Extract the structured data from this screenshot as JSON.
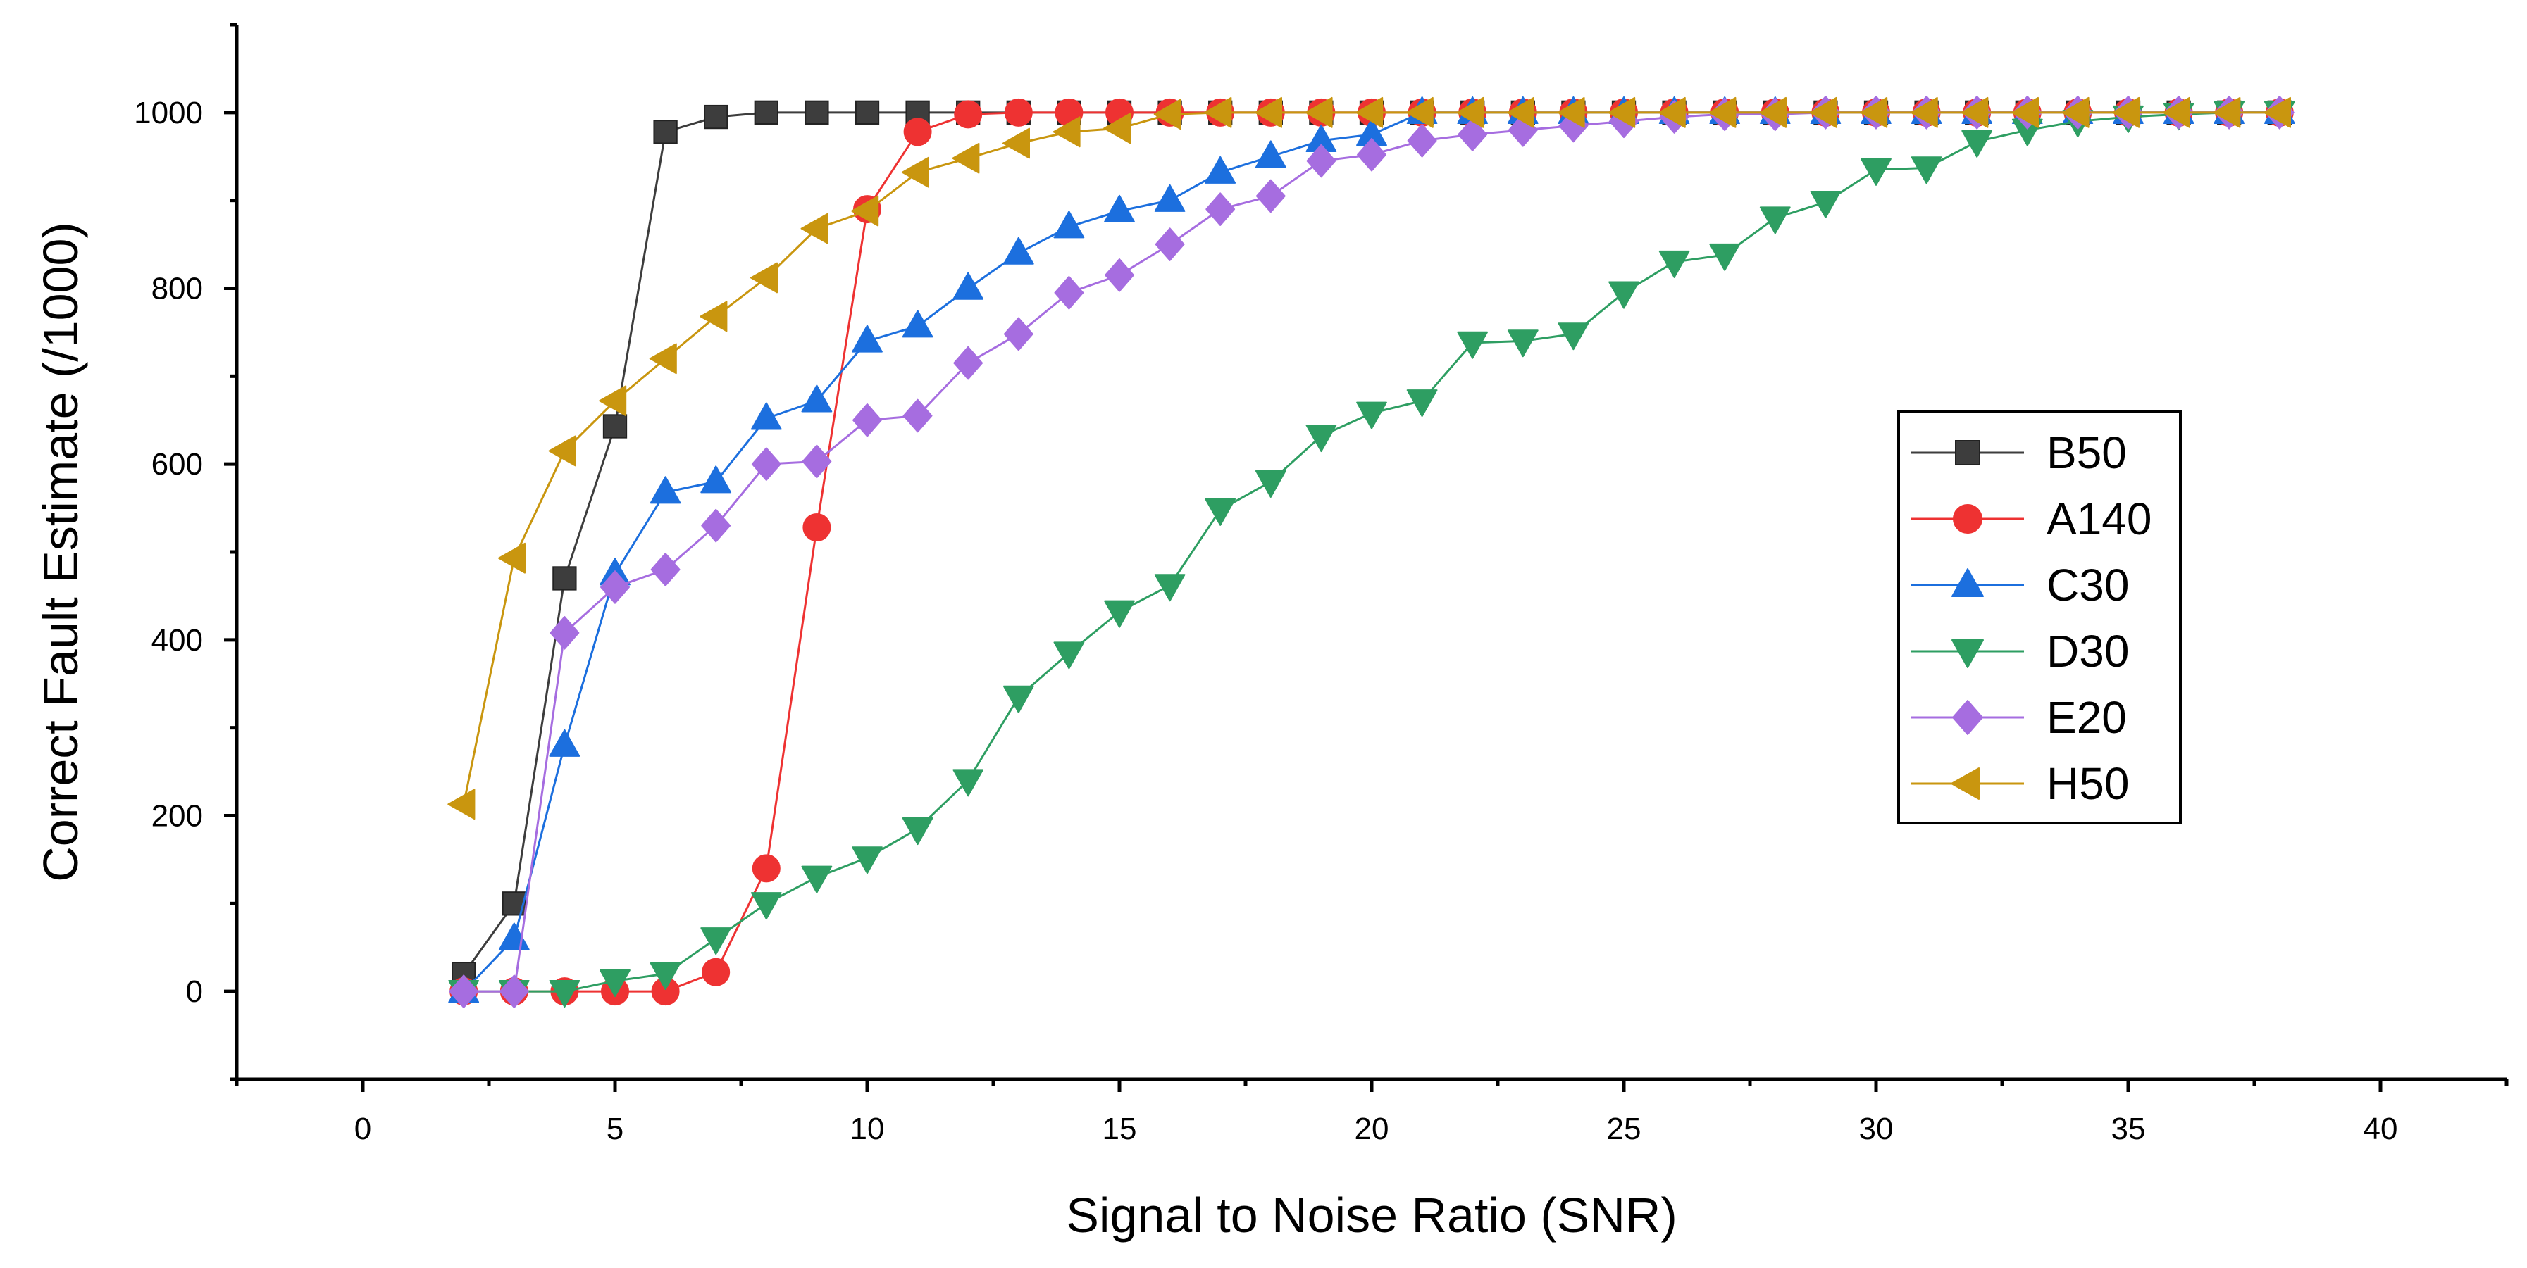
{
  "chart_data": {
    "type": "line",
    "title": "",
    "xlabel": "Signal to Noise Ratio (SNR)",
    "ylabel": "Correct Fault Estimate (/1000)",
    "xlim": [
      -2.5,
      42.5
    ],
    "ylim": [
      -100,
      1100
    ],
    "xticks": [
      0,
      5,
      10,
      15,
      20,
      25,
      30,
      35,
      40
    ],
    "yticks": [
      0,
      200,
      400,
      600,
      800,
      1000
    ],
    "xtick_labels": [
      "0",
      "5",
      "10",
      "15",
      "20",
      "25",
      "30",
      "35",
      "40"
    ],
    "ytick_labels": [
      "0",
      "200",
      "400",
      "600",
      "800",
      "1000"
    ],
    "legend_position": "right",
    "x": [
      2,
      3,
      4,
      5,
      6,
      7,
      8,
      9,
      10,
      11,
      12,
      13,
      14,
      15,
      16,
      17,
      18,
      19,
      20,
      21,
      22,
      23,
      24,
      25,
      26,
      27,
      28,
      29,
      30,
      31,
      32,
      33,
      34,
      35,
      36,
      37,
      38
    ],
    "series": [
      {
        "name": "B50",
        "marker": "square",
        "color": "#3d3d3d",
        "values": [
          20,
          100,
          470,
          643,
          978,
          995,
          1000,
          1000,
          1000,
          1000,
          1000,
          1000,
          1000,
          1000,
          1000,
          1000,
          1000,
          1000,
          1000,
          1000,
          1000,
          1000,
          1000,
          1000,
          1000,
          1000,
          1000,
          1000,
          1000,
          1000,
          1000,
          1000,
          1000,
          1000,
          1000,
          1000,
          1000
        ]
      },
      {
        "name": "A140",
        "marker": "circle",
        "color": "#ee3232",
        "values": [
          0,
          0,
          0,
          0,
          0,
          22,
          140,
          528,
          890,
          978,
          998,
          1000,
          1000,
          1000,
          1000,
          1000,
          1000,
          1000,
          1000,
          1000,
          1000,
          1000,
          1000,
          1000,
          1000,
          1000,
          1000,
          1000,
          1000,
          1000,
          1000,
          1000,
          1000,
          1000,
          1000,
          1000,
          1000
        ]
      },
      {
        "name": "C30",
        "marker": "triangle-up",
        "color": "#1c6fde",
        "values": [
          0,
          60,
          280,
          475,
          568,
          580,
          652,
          672,
          740,
          757,
          800,
          840,
          870,
          888,
          900,
          932,
          950,
          968,
          975,
          1000,
          1000,
          1000,
          1000,
          1000,
          1000,
          1000,
          1000,
          1000,
          1000,
          1000,
          1000,
          1000,
          1000,
          1000,
          1000,
          1000,
          1000
        ]
      },
      {
        "name": "D30",
        "marker": "triangle-down",
        "color": "#2e9e62",
        "values": [
          0,
          0,
          0,
          12,
          20,
          60,
          100,
          130,
          152,
          185,
          240,
          335,
          385,
          432,
          462,
          548,
          580,
          632,
          658,
          672,
          738,
          740,
          748,
          795,
          830,
          838,
          880,
          898,
          935,
          937,
          967,
          980,
          990,
          995,
          998,
          1000,
          1000
        ]
      },
      {
        "name": "E20",
        "marker": "diamond",
        "color": "#a66de0",
        "values": [
          0,
          0,
          408,
          460,
          480,
          530,
          600,
          603,
          650,
          655,
          715,
          748,
          795,
          815,
          850,
          890,
          905,
          945,
          952,
          968,
          975,
          980,
          985,
          990,
          995,
          998,
          998,
          1000,
          1000,
          1000,
          1000,
          1000,
          1000,
          1000,
          1000,
          1000,
          1000
        ]
      },
      {
        "name": "H50",
        "marker": "triangle-left",
        "color": "#c9960f",
        "values": [
          213,
          493,
          615,
          672,
          720,
          768,
          812,
          868,
          888,
          932,
          948,
          965,
          978,
          982,
          998,
          1000,
          1000,
          1000,
          1000,
          1000,
          1000,
          1000,
          1000,
          1000,
          1000,
          1000,
          1000,
          1000,
          1000,
          1000,
          1000,
          1000,
          1000,
          1000,
          1000,
          1000,
          1000
        ]
      }
    ]
  }
}
